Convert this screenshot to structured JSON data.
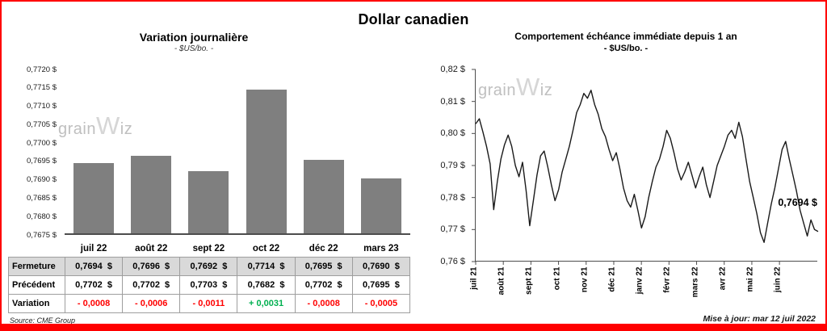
{
  "header": {
    "title": "Dollar canadien"
  },
  "watermark": {
    "pre": "grain",
    "mid": "W",
    "post": "iz"
  },
  "chart_data": [
    {
      "type": "bar",
      "title": "Variation journalière",
      "subtitle": "- $US/bo. -",
      "categories": [
        "juil 22",
        "août 22",
        "sept 22",
        "oct 22",
        "déc 22",
        "mars 23"
      ],
      "values": [
        0.7694,
        0.7696,
        0.7692,
        0.7714,
        0.7695,
        0.769
      ],
      "ylim": [
        0.7675,
        0.772
      ],
      "ytick_labels": [
        "0,7720 $",
        "0,7715 $",
        "0,7710 $",
        "0,7705 $",
        "0,7700 $",
        "0,7695 $",
        "0,7690 $",
        "0,7685 $",
        "0,7680 $",
        "0,7675 $"
      ],
      "bar_color": "#7f7f7f",
      "grid": false,
      "legend": false
    },
    {
      "type": "line",
      "title": "Comportement échéance immédiate depuis 1 an",
      "subtitle": "- $US/bo. -",
      "x_labels": [
        "juil 21",
        "août 21",
        "sept 21",
        "oct 21",
        "nov 21",
        "déc 21",
        "janv 22",
        "févr 22",
        "mars 22",
        "avr 22",
        "mai 22",
        "juin 22"
      ],
      "ylim": [
        0.76,
        0.82
      ],
      "ytick_labels": [
        "0,82 $",
        "0,81 $",
        "0,80 $",
        "0,79 $",
        "0,78 $",
        "0,77 $",
        "0,76 $"
      ],
      "annotation": "0,7694 $",
      "line_color": "#1a1a1a",
      "grid": false,
      "legend": false,
      "values": [
        0.803,
        0.8046,
        0.8005,
        0.796,
        0.7905,
        0.7762,
        0.785,
        0.792,
        0.7965,
        0.7995,
        0.796,
        0.79,
        0.7865,
        0.791,
        0.782,
        0.7712,
        0.779,
        0.787,
        0.793,
        0.7945,
        0.7895,
        0.784,
        0.779,
        0.7825,
        0.788,
        0.792,
        0.796,
        0.801,
        0.8065,
        0.809,
        0.8125,
        0.811,
        0.8135,
        0.809,
        0.806,
        0.8015,
        0.799,
        0.795,
        0.7915,
        0.794,
        0.789,
        0.783,
        0.779,
        0.777,
        0.781,
        0.776,
        0.7705,
        0.774,
        0.78,
        0.785,
        0.7895,
        0.792,
        0.796,
        0.801,
        0.7985,
        0.794,
        0.789,
        0.7855,
        0.788,
        0.791,
        0.787,
        0.783,
        0.7865,
        0.7895,
        0.784,
        0.78,
        0.785,
        0.79,
        0.793,
        0.796,
        0.7995,
        0.801,
        0.7985,
        0.8035,
        0.799,
        0.792,
        0.785,
        0.78,
        0.775,
        0.769,
        0.766,
        0.772,
        0.778,
        0.783,
        0.789,
        0.795,
        0.7975,
        0.792,
        0.787,
        0.782,
        0.776,
        0.772,
        0.768,
        0.773,
        0.77,
        0.7694
      ]
    }
  ],
  "table": {
    "columns": [
      "juil 22",
      "août 22",
      "sept 22",
      "oct 22",
      "déc 22",
      "mars 23"
    ],
    "rows": [
      {
        "label": "Fermeture",
        "bg": "#d9d9d9",
        "values": [
          "0,7694  $",
          "0,7696  $",
          "0,7692  $",
          "0,7714  $",
          "0,7695  $",
          "0,7690  $"
        ]
      },
      {
        "label": "Précédent",
        "bg": "#ffffff",
        "values": [
          "0,7702  $",
          "0,7702  $",
          "0,7703  $",
          "0,7682  $",
          "0,7702  $",
          "0,7695  $"
        ]
      },
      {
        "label": "Variation",
        "bg": "#ffffff",
        "values": [
          "- 0,0008",
          "- 0,0006",
          "- 0,0011",
          "+ 0,0031",
          "- 0,0008",
          "- 0,0005"
        ],
        "value_colors": [
          "#ff0000",
          "#ff0000",
          "#ff0000",
          "#00b050",
          "#ff0000",
          "#ff0000"
        ]
      }
    ]
  },
  "footer": {
    "source": "Source: CME Group",
    "updated": "Mise à jour: mar 12 juil 2022"
  }
}
